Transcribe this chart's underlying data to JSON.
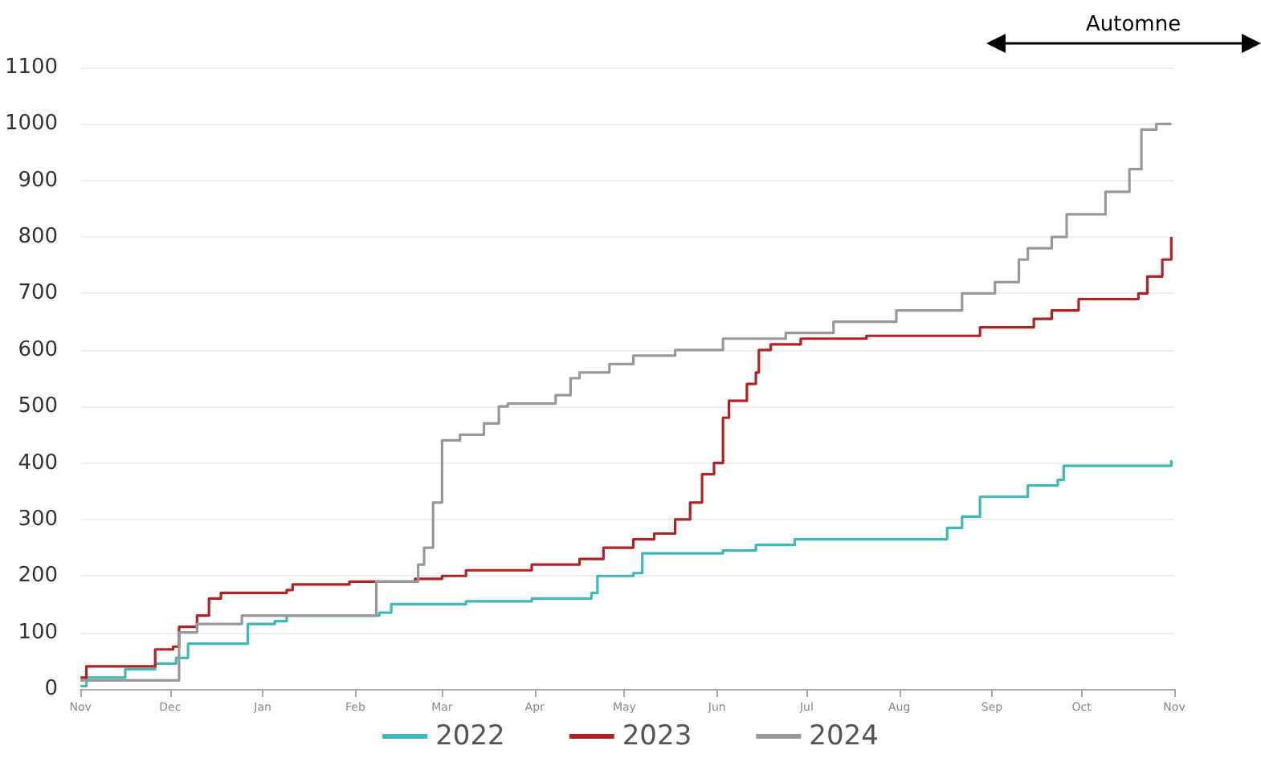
{
  "chart_data": {
    "type": "step",
    "annotations": [
      "Automne"
    ],
    "xlim": [
      "2023-11-01",
      "2024-11-01"
    ],
    "xticks": [
      {
        "value": "2023-11-01",
        "label": "Nov"
      },
      {
        "value": "2023-12-01",
        "label": "Dec"
      },
      {
        "value": "2024-01-01",
        "label": "Jan"
      },
      {
        "value": "2024-02-01",
        "label": "Feb"
      },
      {
        "value": "2024-03-01",
        "label": "Mar"
      },
      {
        "value": "2024-04-01",
        "label": "Apr"
      },
      {
        "value": "2024-05-01",
        "label": "May"
      },
      {
        "value": "2024-06-01",
        "label": "Jun"
      },
      {
        "value": "2024-07-01",
        "label": "Jul"
      },
      {
        "value": "2024-08-01",
        "label": "Aug"
      },
      {
        "value": "2024-09-01",
        "label": "Sep"
      },
      {
        "value": "2024-10-01",
        "label": "Oct"
      },
      {
        "value": "2024-11-01",
        "label": "Nov"
      }
    ],
    "ylim": [
      0,
      1100
    ],
    "yticks": [
      0,
      100,
      200,
      300,
      400,
      500,
      600,
      700,
      800,
      900,
      1000,
      1100
    ],
    "grid": "y",
    "legend": "bottom",
    "marker": "none",
    "line_style": "solid",
    "series": [
      {
        "name": "2022",
        "color": "#3fb8b8",
        "x": [
          "2023-11-01",
          "2023-11-03",
          "2023-11-16",
          "2023-11-26",
          "2023-12-03",
          "2023-12-07",
          "2023-12-24",
          "2023-12-27",
          "2024-01-05",
          "2024-01-09",
          "2024-02-09",
          "2024-02-13",
          "2024-03-09",
          "2024-03-31",
          "2024-04-20",
          "2024-04-22",
          "2024-05-04",
          "2024-05-07",
          "2024-06-03",
          "2024-06-14",
          "2024-06-27",
          "2024-08-06",
          "2024-08-17",
          "2024-08-22",
          "2024-08-28",
          "2024-09-13",
          "2024-09-23",
          "2024-09-25",
          "2024-10-31"
        ],
        "values": [
          5,
          20,
          35,
          45,
          55,
          80,
          80,
          115,
          120,
          130,
          135,
          150,
          155,
          160,
          170,
          200,
          205,
          240,
          245,
          255,
          265,
          265,
          285,
          305,
          340,
          360,
          370,
          395,
          405
        ]
      },
      {
        "name": "2023",
        "color": "#b22222",
        "x": [
          "2023-11-01",
          "2023-11-03",
          "2023-11-26",
          "2023-12-02",
          "2023-12-04",
          "2023-12-10",
          "2023-12-14",
          "2023-12-18",
          "2024-01-09",
          "2024-01-11",
          "2024-01-30",
          "2024-02-21",
          "2024-03-01",
          "2024-03-09",
          "2024-03-31",
          "2024-04-16",
          "2024-04-24",
          "2024-05-04",
          "2024-05-11",
          "2024-05-18",
          "2024-05-23",
          "2024-05-27",
          "2024-05-31",
          "2024-06-03",
          "2024-06-05",
          "2024-06-11",
          "2024-06-14",
          "2024-06-15",
          "2024-06-19",
          "2024-06-29",
          "2024-07-21",
          "2024-08-28",
          "2024-09-15",
          "2024-09-21",
          "2024-09-30",
          "2024-10-20",
          "2024-10-23",
          "2024-10-28",
          "2024-10-31"
        ],
        "values": [
          20,
          40,
          70,
          75,
          110,
          130,
          160,
          170,
          175,
          185,
          190,
          195,
          200,
          210,
          220,
          230,
          250,
          265,
          275,
          300,
          330,
          380,
          400,
          480,
          510,
          540,
          560,
          600,
          610,
          620,
          625,
          640,
          655,
          670,
          690,
          700,
          730,
          760,
          800
        ]
      },
      {
        "name": "2024",
        "color": "#999999",
        "x": [
          "2023-11-01",
          "2023-12-04",
          "2023-12-10",
          "2023-12-25",
          "2024-02-08",
          "2024-02-22",
          "2024-02-24",
          "2024-02-27",
          "2024-03-01",
          "2024-03-07",
          "2024-03-15",
          "2024-03-20",
          "2024-03-23",
          "2024-04-08",
          "2024-04-13",
          "2024-04-16",
          "2024-04-26",
          "2024-05-04",
          "2024-05-18",
          "2024-06-03",
          "2024-06-24",
          "2024-07-10",
          "2024-07-31",
          "2024-08-22",
          "2024-09-02",
          "2024-09-10",
          "2024-09-13",
          "2024-09-21",
          "2024-09-26",
          "2024-10-09",
          "2024-10-17",
          "2024-10-21",
          "2024-10-26",
          "2024-10-31"
        ],
        "values": [
          15,
          100,
          115,
          130,
          190,
          220,
          250,
          330,
          440,
          450,
          470,
          500,
          505,
          520,
          550,
          560,
          575,
          590,
          600,
          620,
          630,
          650,
          670,
          700,
          720,
          760,
          780,
          800,
          840,
          880,
          920,
          990,
          1000,
          1000
        ]
      }
    ]
  }
}
